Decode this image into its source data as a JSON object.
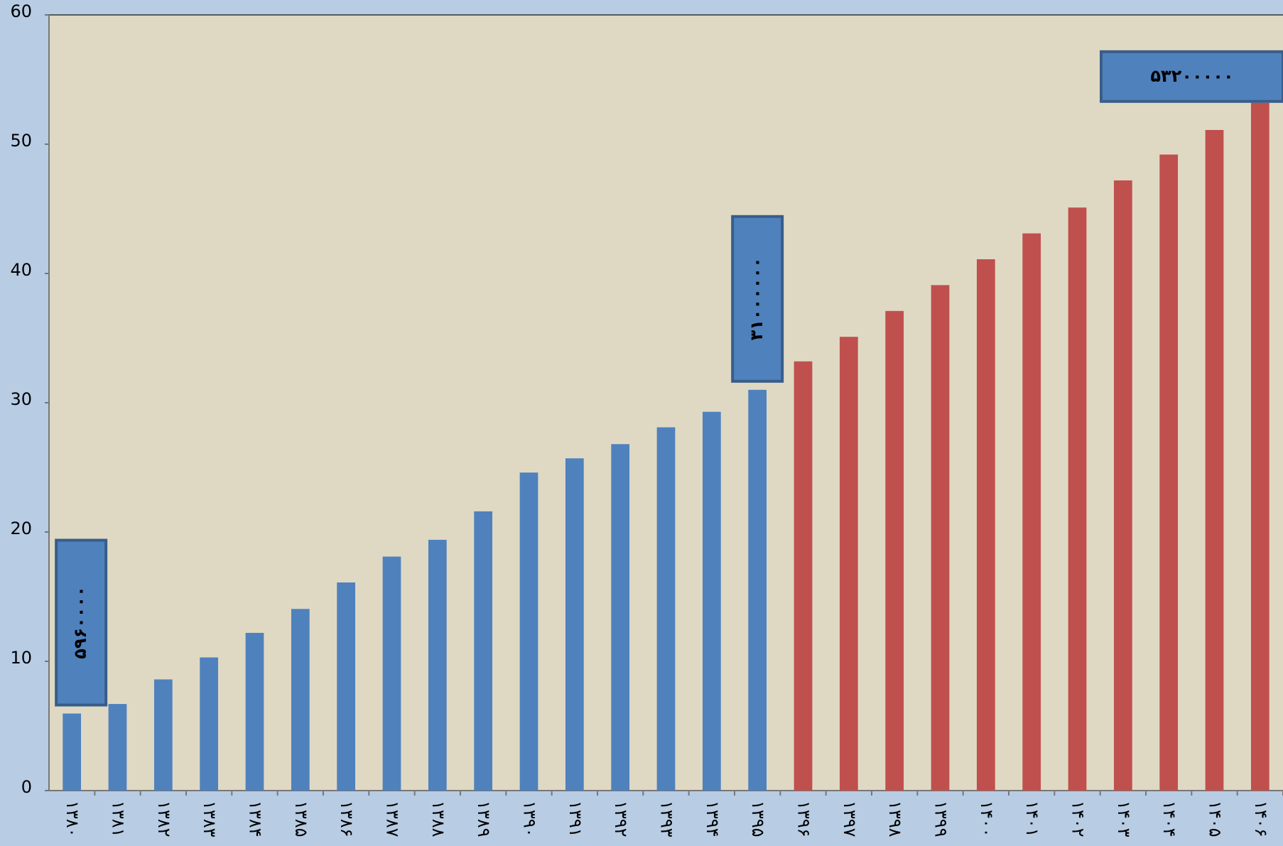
{
  "chart_data": {
    "type": "bar",
    "categories": [
      "۱۳۸۰",
      "۱۳۸۱",
      "۱۳۸۲",
      "۱۳۸۳",
      "۱۳۸۴",
      "۱۳۸۵",
      "۱۳۸۶",
      "۱۳۸۷",
      "۱۳۸۸",
      "۱۳۸۹",
      "۱۳۹۰",
      "۱۳۹۱",
      "۱۳۹۲",
      "۱۳۹۳",
      "۱۳۹۴",
      "۱۳۹۵",
      "۱۳۹۶",
      "۱۳۹۷",
      "۱۳۹۸",
      "۱۳۹۹",
      "۱۴۰۰",
      "۱۴۰۱",
      "۱۴۰۲",
      "۱۴۰۳",
      "۱۴۰۴",
      "۱۴۰۵",
      "۱۴۰۶"
    ],
    "series": [
      {
        "color": "#4f81bd",
        "values": [
          5.96,
          6.7,
          8.6,
          10.3,
          12.2,
          14.05,
          16.1,
          18.1,
          19.4,
          21.6,
          24.6,
          25.7,
          26.8,
          28.1,
          29.3,
          31,
          null,
          null,
          null,
          null,
          null,
          null,
          null,
          null,
          null,
          null,
          null
        ],
        "value_labels": [
          "۵۹۶۰۰۰۰",
          null,
          null,
          null,
          null,
          null,
          null,
          null,
          null,
          null,
          null,
          null,
          null,
          null,
          null,
          "۳۱۰۰۰۰۰۰",
          null,
          null,
          null,
          null,
          null,
          null,
          null,
          null,
          null,
          null,
          null
        ]
      },
      {
        "color": "#c0504d",
        "values": [
          null,
          null,
          null,
          null,
          null,
          null,
          null,
          null,
          null,
          null,
          null,
          null,
          null,
          null,
          null,
          null,
          33.2,
          35.1,
          37.1,
          39.1,
          41.1,
          43.1,
          45.1,
          47.2,
          49.2,
          51.1,
          53.2
        ],
        "value_labels": [
          null,
          null,
          null,
          null,
          null,
          null,
          null,
          null,
          null,
          null,
          null,
          null,
          null,
          null,
          null,
          null,
          null,
          null,
          null,
          null,
          null,
          null,
          null,
          null,
          null,
          null,
          "۵۳۲۰۰۰۰۰"
        ]
      }
    ],
    "ylim": [
      0,
      60
    ],
    "yticks": [
      0,
      10,
      20,
      30,
      40,
      50,
      60
    ]
  }
}
